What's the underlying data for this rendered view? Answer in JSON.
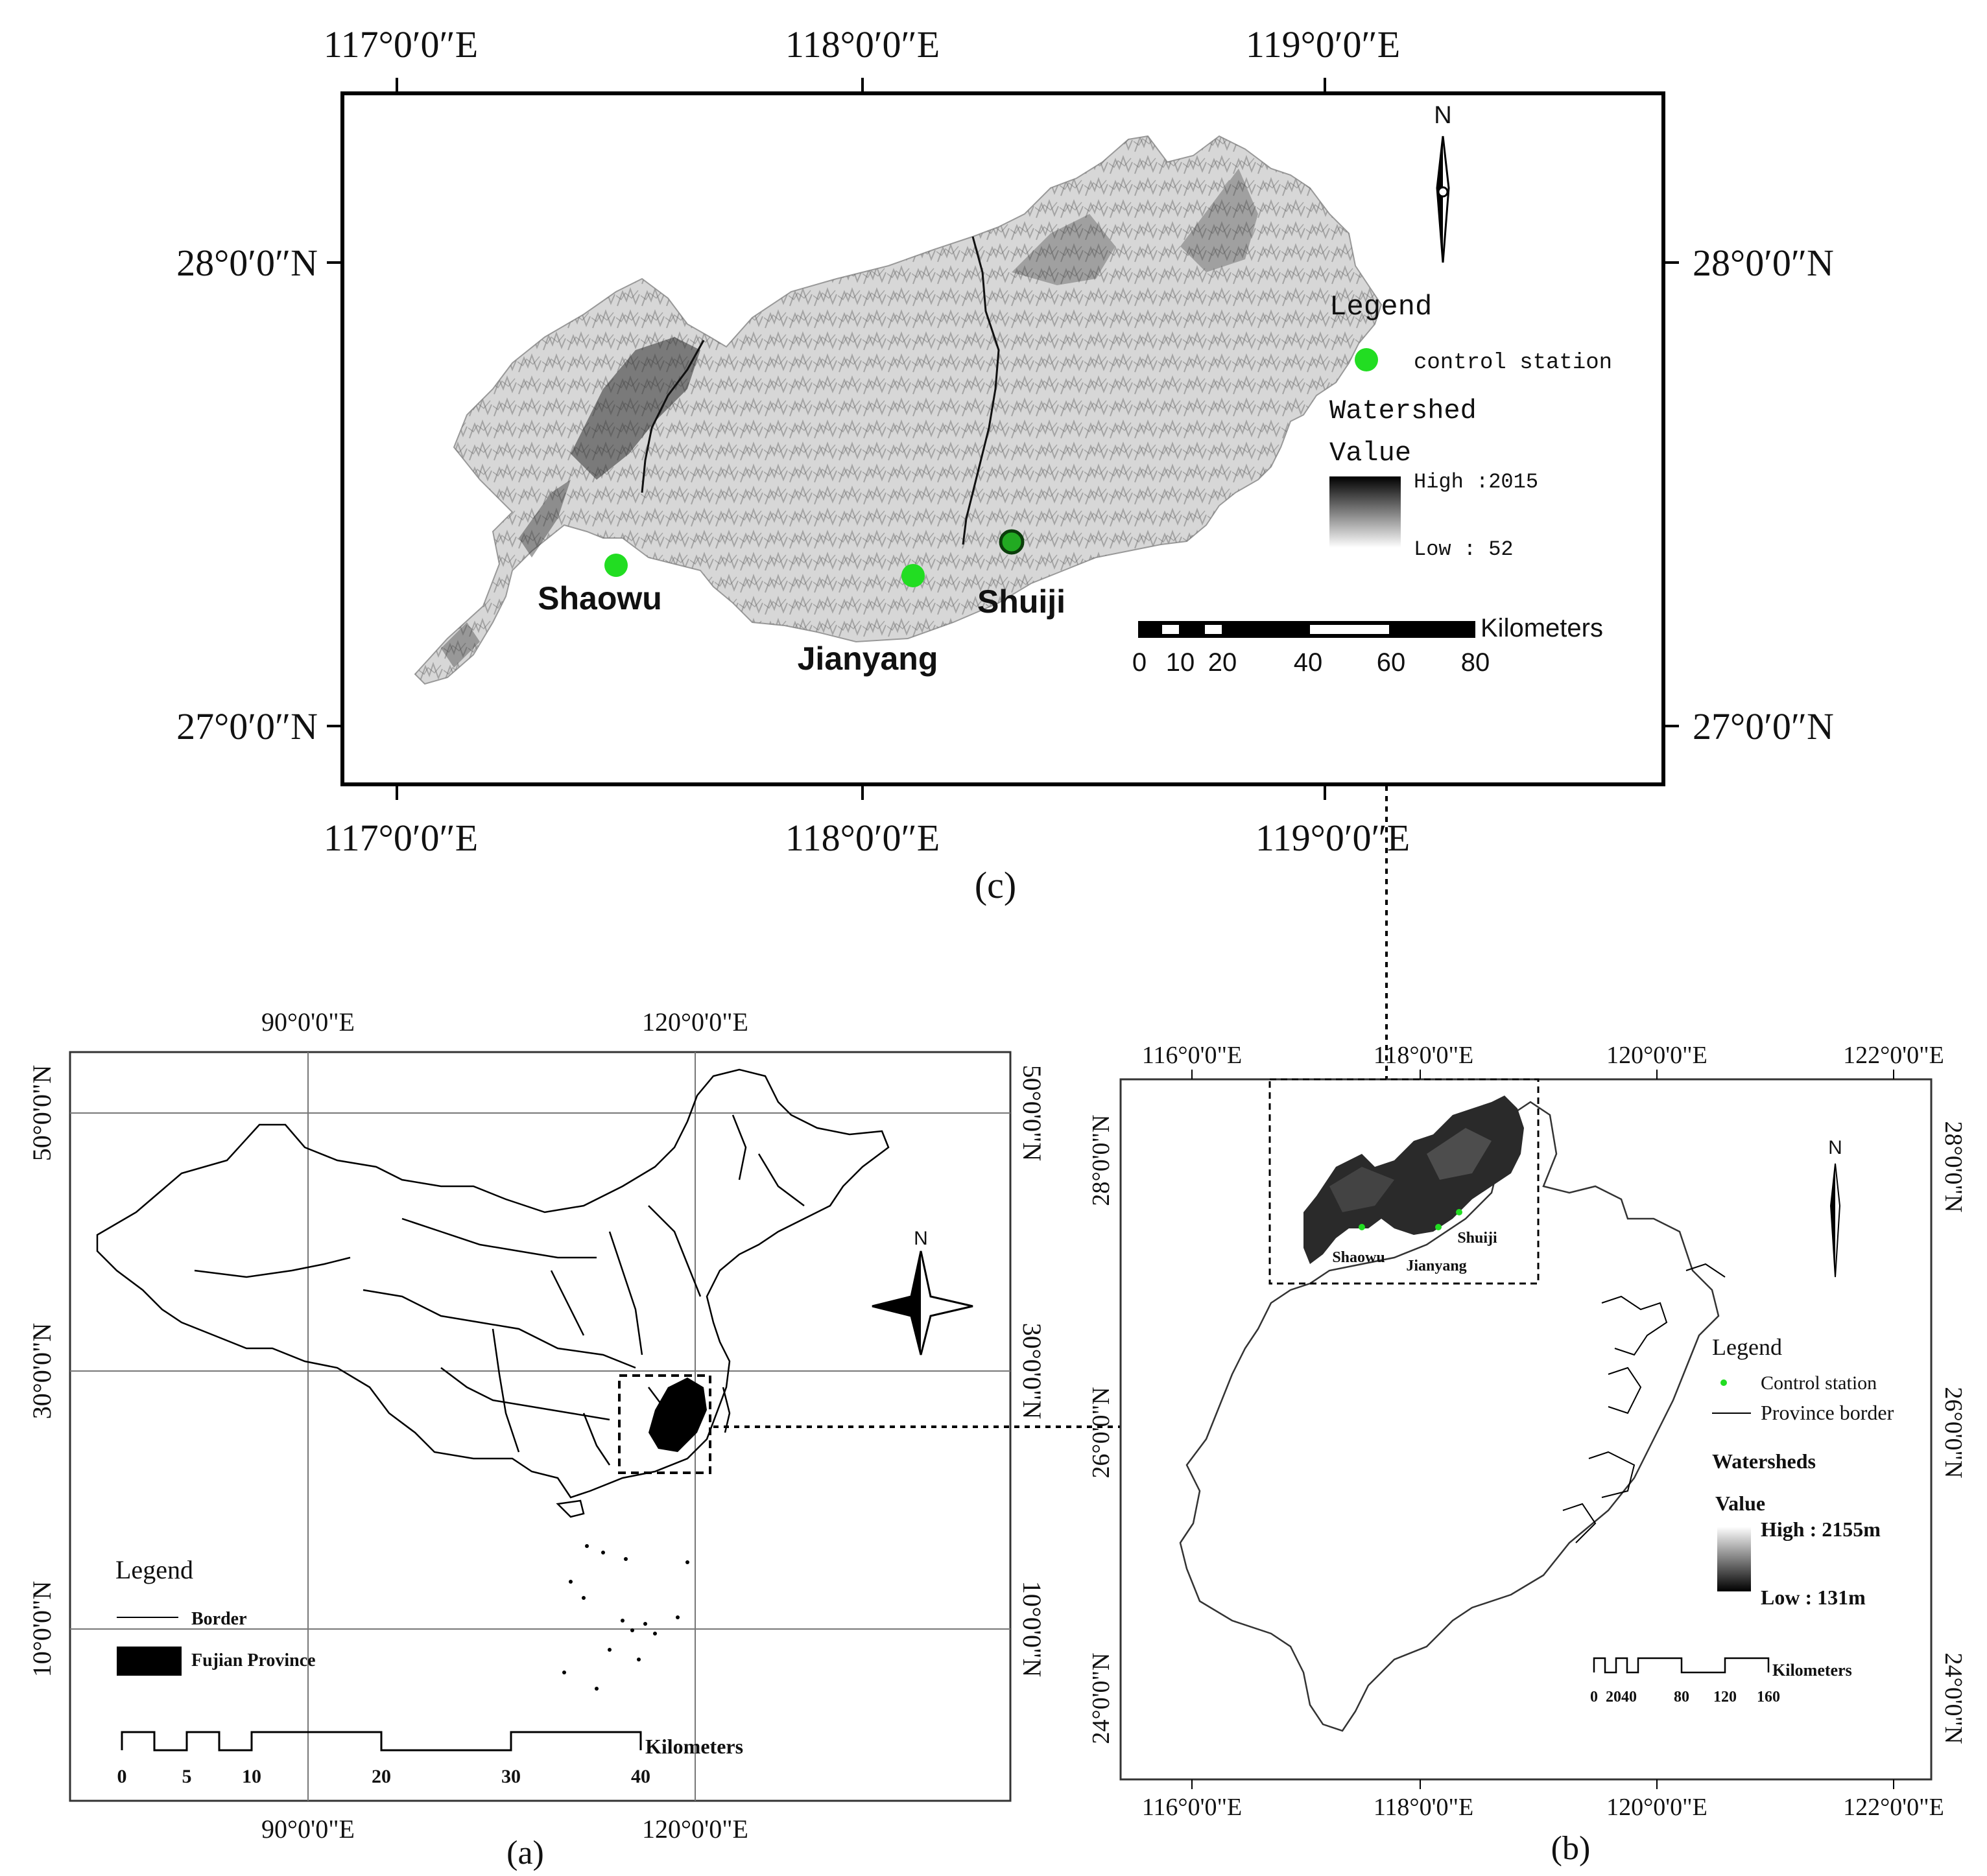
{
  "panel_c": {
    "caption": "(c)",
    "lon_labels": [
      "117°0′0″E",
      "118°0′0″E",
      "119°0′0″E"
    ],
    "lat_labels": [
      "28°0′0″N",
      "27°0′0″N"
    ],
    "north_label": "N",
    "stations": [
      "Shaowu",
      "Jianyang",
      "Shuiji"
    ],
    "legend": {
      "title": "Legend",
      "station_label": "control station",
      "watershed_title": "Watershed",
      "value_title": "Value",
      "high": "High :2015",
      "low": "Low : 52"
    },
    "scale": {
      "ticks": [
        "0",
        "10",
        "20",
        "40",
        "60",
        "80"
      ],
      "unit": "Kilometers"
    },
    "colors": {
      "station": "#22dd22",
      "station_stroke": "#1a8f1a",
      "frame": "#000000"
    }
  },
  "panel_a": {
    "caption": "(a)",
    "lon_labels": [
      "90°0'0\"E",
      "120°0'0\"E"
    ],
    "lat_labels": [
      "50°0'0\"N",
      "30°0'0\"N",
      "10°0'0\"N"
    ],
    "north_label": "N",
    "legend": {
      "title": "Legend",
      "border_label": "Border",
      "province_label": "Fujian Province"
    },
    "scale": {
      "ticks": [
        "0",
        "5",
        "10",
        "20",
        "30",
        "40"
      ],
      "unit": "Kilometers"
    }
  },
  "panel_b": {
    "caption": "(b)",
    "lon_labels": [
      "116°0'0\"E",
      "118°0'0\"E",
      "120°0'0\"E",
      "122°0'0\"E"
    ],
    "lat_labels": [
      "28°0'0\"N",
      "26°0'0\"N",
      "24°0'0\"N"
    ],
    "north_label": "N",
    "stations": [
      "Shaowu",
      "Jianyang",
      "Shuiji"
    ],
    "legend": {
      "title": "Legend",
      "station_label": "Control station",
      "province_label": "Province border",
      "watershed_title": "Watersheds",
      "value_title": "Value",
      "high": "High : 2155m",
      "low": "Low : 131m"
    },
    "scale": {
      "ticks": [
        "0",
        "2040",
        "80",
        "120",
        "160"
      ],
      "unit": "Kilometers"
    }
  }
}
